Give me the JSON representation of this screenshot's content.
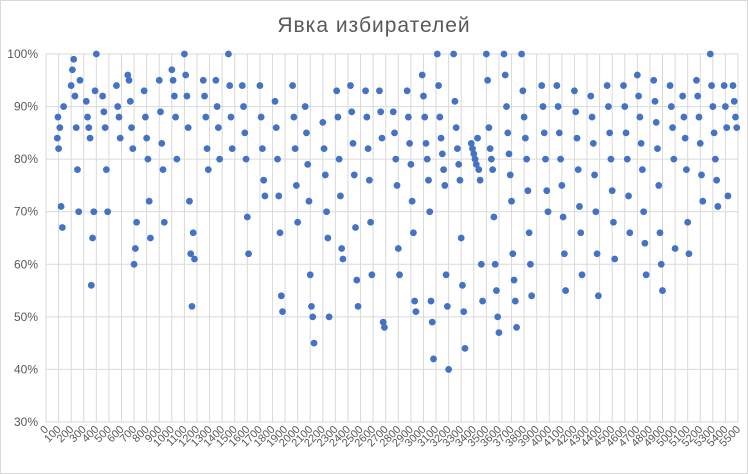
{
  "chart_data": {
    "type": "scatter",
    "title": "Явка избирателей",
    "xlabel": "",
    "ylabel": "",
    "xlim": [
      0,
      5500
    ],
    "ylim": [
      0.3,
      1.0
    ],
    "ytick_labels": [
      "30%",
      "40%",
      "50%",
      "60%",
      "70%",
      "80%",
      "90%",
      "100%"
    ],
    "xtick_labels": [
      "0",
      "100",
      "200",
      "300",
      "400",
      "500",
      "600",
      "700",
      "800",
      "900",
      "1000",
      "1100",
      "1200",
      "1300",
      "1400",
      "1500",
      "1600",
      "1700",
      "1800",
      "1900",
      "2000",
      "2100",
      "2200",
      "2300",
      "2400",
      "2500",
      "2600",
      "2700",
      "2800",
      "2900",
      "3000",
      "3100",
      "3200",
      "3300",
      "3400",
      "3500",
      "3600",
      "3700",
      "3800",
      "3900",
      "4000",
      "4100",
      "4200",
      "4300",
      "4400",
      "4500",
      "4600",
      "4700",
      "4800",
      "4900",
      "5000",
      "5100",
      "5200",
      "5300",
      "5400",
      "5500"
    ],
    "grid": "vertical and horizontal",
    "legend": "none",
    "marker_color": "#4472c4",
    "points": [
      [
        90,
        0.84
      ],
      [
        95,
        0.88
      ],
      [
        100,
        0.82
      ],
      [
        110,
        0.86
      ],
      [
        120,
        0.71
      ],
      [
        130,
        0.67
      ],
      [
        140,
        0.9
      ],
      [
        200,
        0.94
      ],
      [
        210,
        0.97
      ],
      [
        220,
        0.99
      ],
      [
        230,
        0.92
      ],
      [
        240,
        0.86
      ],
      [
        250,
        0.78
      ],
      [
        260,
        0.7
      ],
      [
        270,
        0.95
      ],
      [
        320,
        0.91
      ],
      [
        330,
        0.88
      ],
      [
        340,
        0.86
      ],
      [
        350,
        0.84
      ],
      [
        360,
        0.56
      ],
      [
        370,
        0.65
      ],
      [
        380,
        0.7
      ],
      [
        390,
        0.93
      ],
      [
        400,
        1.0
      ],
      [
        450,
        0.92
      ],
      [
        460,
        0.89
      ],
      [
        470,
        0.86
      ],
      [
        480,
        0.78
      ],
      [
        490,
        0.7
      ],
      [
        560,
        0.94
      ],
      [
        570,
        0.9
      ],
      [
        580,
        0.88
      ],
      [
        590,
        0.84
      ],
      [
        650,
        0.96
      ],
      [
        660,
        0.95
      ],
      [
        670,
        0.91
      ],
      [
        680,
        0.86
      ],
      [
        690,
        0.82
      ],
      [
        700,
        0.6
      ],
      [
        710,
        0.63
      ],
      [
        720,
        0.68
      ],
      [
        780,
        0.93
      ],
      [
        790,
        0.88
      ],
      [
        800,
        0.84
      ],
      [
        810,
        0.8
      ],
      [
        820,
        0.72
      ],
      [
        830,
        0.65
      ],
      [
        900,
        0.95
      ],
      [
        910,
        0.89
      ],
      [
        920,
        0.83
      ],
      [
        930,
        0.78
      ],
      [
        940,
        0.68
      ],
      [
        1000,
        0.97
      ],
      [
        1010,
        0.95
      ],
      [
        1020,
        0.92
      ],
      [
        1030,
        0.88
      ],
      [
        1040,
        0.8
      ],
      [
        1100,
        1.0
      ],
      [
        1110,
        0.96
      ],
      [
        1120,
        0.92
      ],
      [
        1130,
        0.86
      ],
      [
        1140,
        0.72
      ],
      [
        1150,
        0.62
      ],
      [
        1160,
        0.52
      ],
      [
        1170,
        0.66
      ],
      [
        1180,
        0.61
      ],
      [
        1250,
        0.95
      ],
      [
        1260,
        0.92
      ],
      [
        1270,
        0.88
      ],
      [
        1280,
        0.82
      ],
      [
        1290,
        0.78
      ],
      [
        1350,
        0.95
      ],
      [
        1360,
        0.9
      ],
      [
        1370,
        0.86
      ],
      [
        1380,
        0.8
      ],
      [
        1450,
        1.0
      ],
      [
        1460,
        0.94
      ],
      [
        1470,
        0.88
      ],
      [
        1480,
        0.82
      ],
      [
        1560,
        0.94
      ],
      [
        1570,
        0.9
      ],
      [
        1580,
        0.85
      ],
      [
        1590,
        0.8
      ],
      [
        1600,
        0.69
      ],
      [
        1610,
        0.62
      ],
      [
        1700,
        0.94
      ],
      [
        1710,
        0.88
      ],
      [
        1720,
        0.82
      ],
      [
        1730,
        0.76
      ],
      [
        1740,
        0.73
      ],
      [
        1820,
        0.91
      ],
      [
        1830,
        0.86
      ],
      [
        1840,
        0.8
      ],
      [
        1850,
        0.73
      ],
      [
        1860,
        0.66
      ],
      [
        1870,
        0.54
      ],
      [
        1880,
        0.51
      ],
      [
        1960,
        0.94
      ],
      [
        1970,
        0.88
      ],
      [
        1980,
        0.82
      ],
      [
        1990,
        0.75
      ],
      [
        2000,
        0.68
      ],
      [
        2060,
        0.9
      ],
      [
        2070,
        0.85
      ],
      [
        2080,
        0.79
      ],
      [
        2090,
        0.72
      ],
      [
        2100,
        0.58
      ],
      [
        2110,
        0.52
      ],
      [
        2120,
        0.5
      ],
      [
        2130,
        0.45
      ],
      [
        2200,
        0.87
      ],
      [
        2210,
        0.82
      ],
      [
        2220,
        0.77
      ],
      [
        2230,
        0.7
      ],
      [
        2240,
        0.65
      ],
      [
        2250,
        0.5
      ],
      [
        2310,
        0.93
      ],
      [
        2320,
        0.88
      ],
      [
        2330,
        0.8
      ],
      [
        2340,
        0.73
      ],
      [
        2350,
        0.63
      ],
      [
        2360,
        0.61
      ],
      [
        2420,
        0.94
      ],
      [
        2430,
        0.89
      ],
      [
        2440,
        0.83
      ],
      [
        2450,
        0.77
      ],
      [
        2460,
        0.67
      ],
      [
        2470,
        0.57
      ],
      [
        2480,
        0.52
      ],
      [
        2540,
        0.93
      ],
      [
        2550,
        0.88
      ],
      [
        2560,
        0.82
      ],
      [
        2570,
        0.76
      ],
      [
        2580,
        0.68
      ],
      [
        2590,
        0.58
      ],
      [
        2650,
        0.93
      ],
      [
        2660,
        0.89
      ],
      [
        2670,
        0.84
      ],
      [
        2680,
        0.49
      ],
      [
        2690,
        0.48
      ],
      [
        2760,
        0.89
      ],
      [
        2770,
        0.85
      ],
      [
        2780,
        0.8
      ],
      [
        2790,
        0.75
      ],
      [
        2800,
        0.63
      ],
      [
        2810,
        0.58
      ],
      [
        2870,
        0.93
      ],
      [
        2880,
        0.88
      ],
      [
        2890,
        0.83
      ],
      [
        2900,
        0.79
      ],
      [
        2910,
        0.72
      ],
      [
        2920,
        0.66
      ],
      [
        2930,
        0.53
      ],
      [
        2940,
        0.51
      ],
      [
        2990,
        0.96
      ],
      [
        3000,
        0.92
      ],
      [
        3010,
        0.88
      ],
      [
        3020,
        0.83
      ],
      [
        3030,
        0.8
      ],
      [
        3040,
        0.76
      ],
      [
        3050,
        0.7
      ],
      [
        3060,
        0.53
      ],
      [
        3070,
        0.49
      ],
      [
        3080,
        0.42
      ],
      [
        3110,
        1.0
      ],
      [
        3120,
        0.94
      ],
      [
        3130,
        0.88
      ],
      [
        3140,
        0.84
      ],
      [
        3150,
        0.81
      ],
      [
        3160,
        0.78
      ],
      [
        3170,
        0.75
      ],
      [
        3180,
        0.58
      ],
      [
        3190,
        0.52
      ],
      [
        3200,
        0.4
      ],
      [
        3240,
        1.0
      ],
      [
        3250,
        0.91
      ],
      [
        3260,
        0.86
      ],
      [
        3270,
        0.82
      ],
      [
        3280,
        0.79
      ],
      [
        3290,
        0.76
      ],
      [
        3300,
        0.65
      ],
      [
        3310,
        0.56
      ],
      [
        3320,
        0.51
      ],
      [
        3330,
        0.44
      ],
      [
        3380,
        0.83
      ],
      [
        3390,
        0.82
      ],
      [
        3400,
        0.81
      ],
      [
        3410,
        0.8
      ],
      [
        3420,
        0.79
      ],
      [
        3430,
        0.84
      ],
      [
        3440,
        0.78
      ],
      [
        3450,
        0.76
      ],
      [
        3460,
        0.6
      ],
      [
        3470,
        0.53
      ],
      [
        3500,
        1.0
      ],
      [
        3510,
        0.95
      ],
      [
        3520,
        0.86
      ],
      [
        3530,
        0.82
      ],
      [
        3540,
        0.8
      ],
      [
        3550,
        0.78
      ],
      [
        3560,
        0.69
      ],
      [
        3570,
        0.6
      ],
      [
        3580,
        0.55
      ],
      [
        3590,
        0.5
      ],
      [
        3600,
        0.47
      ],
      [
        3640,
        1.0
      ],
      [
        3650,
        0.96
      ],
      [
        3660,
        0.9
      ],
      [
        3670,
        0.85
      ],
      [
        3680,
        0.81
      ],
      [
        3690,
        0.77
      ],
      [
        3700,
        0.72
      ],
      [
        3710,
        0.62
      ],
      [
        3720,
        0.57
      ],
      [
        3730,
        0.53
      ],
      [
        3740,
        0.48
      ],
      [
        3780,
        1.0
      ],
      [
        3790,
        0.93
      ],
      [
        3800,
        0.88
      ],
      [
        3810,
        0.84
      ],
      [
        3820,
        0.8
      ],
      [
        3830,
        0.74
      ],
      [
        3840,
        0.66
      ],
      [
        3850,
        0.6
      ],
      [
        3860,
        0.54
      ],
      [
        3940,
        0.94
      ],
      [
        3950,
        0.9
      ],
      [
        3960,
        0.85
      ],
      [
        3970,
        0.8
      ],
      [
        3980,
        0.74
      ],
      [
        3990,
        0.7
      ],
      [
        4060,
        0.94
      ],
      [
        4070,
        0.9
      ],
      [
        4080,
        0.85
      ],
      [
        4090,
        0.8
      ],
      [
        4100,
        0.75
      ],
      [
        4110,
        0.69
      ],
      [
        4120,
        0.62
      ],
      [
        4130,
        0.55
      ],
      [
        4200,
        0.93
      ],
      [
        4210,
        0.89
      ],
      [
        4220,
        0.84
      ],
      [
        4230,
        0.78
      ],
      [
        4240,
        0.71
      ],
      [
        4250,
        0.66
      ],
      [
        4260,
        0.58
      ],
      [
        4330,
        0.92
      ],
      [
        4340,
        0.88
      ],
      [
        4350,
        0.83
      ],
      [
        4360,
        0.77
      ],
      [
        4370,
        0.7
      ],
      [
        4380,
        0.62
      ],
      [
        4390,
        0.54
      ],
      [
        4460,
        0.94
      ],
      [
        4470,
        0.9
      ],
      [
        4480,
        0.85
      ],
      [
        4490,
        0.8
      ],
      [
        4500,
        0.74
      ],
      [
        4510,
        0.68
      ],
      [
        4520,
        0.61
      ],
      [
        4590,
        0.94
      ],
      [
        4600,
        0.9
      ],
      [
        4610,
        0.85
      ],
      [
        4620,
        0.8
      ],
      [
        4630,
        0.73
      ],
      [
        4640,
        0.66
      ],
      [
        4700,
        0.96
      ],
      [
        4710,
        0.92
      ],
      [
        4720,
        0.88
      ],
      [
        4730,
        0.83
      ],
      [
        4740,
        0.78
      ],
      [
        4750,
        0.7
      ],
      [
        4760,
        0.64
      ],
      [
        4770,
        0.58
      ],
      [
        4830,
        0.95
      ],
      [
        4840,
        0.91
      ],
      [
        4850,
        0.87
      ],
      [
        4860,
        0.82
      ],
      [
        4870,
        0.75
      ],
      [
        4880,
        0.66
      ],
      [
        4890,
        0.6
      ],
      [
        4900,
        0.55
      ],
      [
        4960,
        0.94
      ],
      [
        4970,
        0.9
      ],
      [
        4980,
        0.86
      ],
      [
        4990,
        0.8
      ],
      [
        5000,
        0.63
      ],
      [
        5060,
        0.92
      ],
      [
        5070,
        0.88
      ],
      [
        5080,
        0.84
      ],
      [
        5090,
        0.78
      ],
      [
        5100,
        0.68
      ],
      [
        5110,
        0.62
      ],
      [
        5170,
        0.95
      ],
      [
        5180,
        0.92
      ],
      [
        5190,
        0.88
      ],
      [
        5200,
        0.83
      ],
      [
        5210,
        0.77
      ],
      [
        5220,
        0.72
      ],
      [
        5280,
        1.0
      ],
      [
        5290,
        0.94
      ],
      [
        5300,
        0.9
      ],
      [
        5310,
        0.85
      ],
      [
        5320,
        0.8
      ],
      [
        5330,
        0.76
      ],
      [
        5340,
        0.71
      ],
      [
        5390,
        0.94
      ],
      [
        5400,
        0.9
      ],
      [
        5410,
        0.86
      ],
      [
        5420,
        0.73
      ],
      [
        5460,
        0.94
      ],
      [
        5470,
        0.91
      ],
      [
        5480,
        0.88
      ],
      [
        5490,
        0.86
      ]
    ]
  }
}
